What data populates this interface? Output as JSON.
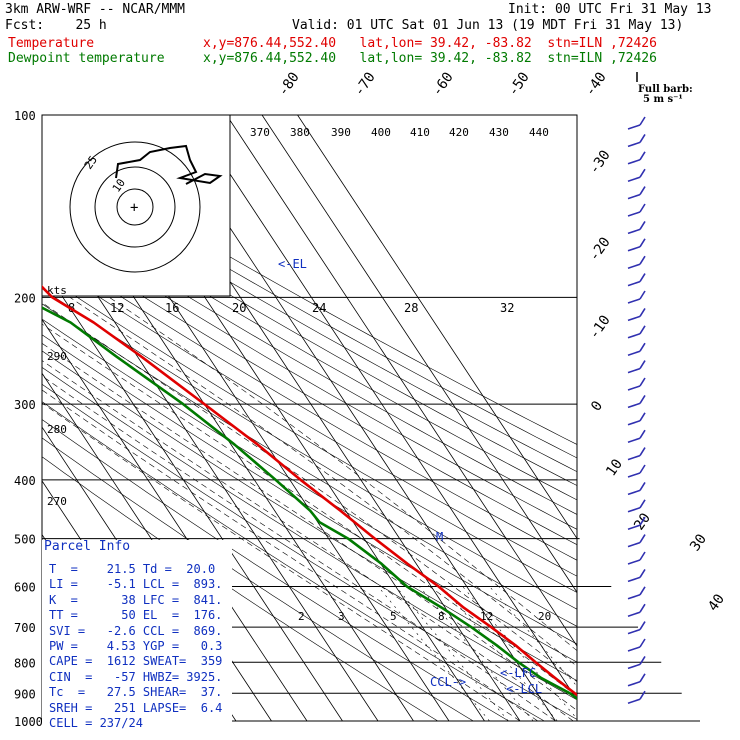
{
  "header": {
    "model": "3km ARW-WRF -- NCAR/MMM",
    "init": "Init: 00 UTC Fri 31 May 13",
    "fcst": "Fcst:    25 h",
    "valid": "Valid: 01 UTC Sat 01 Jun 13 (19 MDT Fri 31 May 13)",
    "temp_label": "Temperature",
    "temp_loc": "x,y=876.44,552.40   lat,lon= 39.42, -83.82  stn=ILN ,72426",
    "dew_label": "Dewpoint temperature",
    "dew_loc": "x,y=876.44,552.40   lat,lon= 39.42, -83.82  stn=ILN ,72426"
  },
  "wind_key": {
    "title": "Full barb:",
    "value": "5 m s⁻¹"
  },
  "parcel": {
    "title": "Parcel Info",
    "rows": [
      "T  =    21.5 Td =  20.0",
      "LI =    -5.1 LCL =  893.",
      "K  =      38 LFC =  841.",
      "TT =      50 EL  =  176.",
      "SVI =   -2.6 CCL =  869.",
      "PW =    4.53 YGP =   0.3",
      "CAPE =  1612 SWEAT=  359",
      "CIN  =   -57 HWBZ= 3925.",
      "Tc  =   27.5 SHEAR=  37.",
      "SREH =   251 LAPSE=  6.4",
      "CELL = 237/24"
    ]
  },
  "chart_data": {
    "type": "line",
    "diagram": "skew-T log-p",
    "pressure_ticks": [
      100,
      200,
      300,
      400,
      500,
      600,
      700,
      800,
      900,
      1000
    ],
    "pressure_range": [
      100,
      1000
    ],
    "temperature_tick_labels": [
      "-80",
      "-70",
      "-60",
      "-50",
      "-40",
      "-30",
      "-20",
      "-10",
      "0",
      "10",
      "20",
      "30",
      "40"
    ],
    "theta_labels_top": [
      "370",
      "380",
      "390",
      "400",
      "410",
      "420",
      "430",
      "440"
    ],
    "theta_labels_left": [
      "290",
      "280",
      "270"
    ],
    "mixing_ratio_labels": [
      "2",
      "3",
      "5",
      "8",
      "12",
      "20"
    ],
    "hodograph_speed_labels": [
      "8",
      "12",
      "16",
      "20",
      "24",
      "28",
      "32"
    ],
    "hodograph_units": "kts",
    "hodograph_ring_labels": [
      "25",
      "10"
    ],
    "annotations": [
      "<-EL",
      "<-LFC",
      "<-LCL",
      "CCL->",
      "M"
    ],
    "series": [
      {
        "name": "Temperature",
        "color": "#e00000",
        "points": [
          [
            975,
            24.5
          ],
          [
            960,
            25.3
          ],
          [
            930,
            22.5
          ],
          [
            900,
            20.6
          ],
          [
            850,
            17.9
          ],
          [
            800,
            15.3
          ],
          [
            750,
            12.8
          ],
          [
            700,
            9.3
          ],
          [
            650,
            5.2
          ],
          [
            600,
            2.1
          ],
          [
            550,
            -2.5
          ],
          [
            500,
            -7.0
          ],
          [
            450,
            -11.5
          ],
          [
            400,
            -17.0
          ],
          [
            350,
            -22.5
          ],
          [
            300,
            -30.0
          ],
          [
            250,
            -39.0
          ],
          [
            220,
            -46.0
          ],
          [
            200,
            -53.0
          ],
          [
            180,
            -55.5
          ],
          [
            150,
            -54.0
          ],
          [
            140,
            -55.0
          ],
          [
            120,
            -58.0
          ],
          [
            110,
            -59.5
          ],
          [
            100,
            -60.5
          ]
        ]
      },
      {
        "name": "Dewpoint temperature",
        "color": "#007a00",
        "points": [
          [
            975,
            20.0
          ],
          [
            960,
            19.5
          ],
          [
            940,
            21.5
          ],
          [
            900,
            19.2
          ],
          [
            850,
            14.0
          ],
          [
            800,
            10.5
          ],
          [
            750,
            7.5
          ],
          [
            700,
            3.7
          ],
          [
            650,
            -1.0
          ],
          [
            600,
            -6.8
          ],
          [
            550,
            -9.8
          ],
          [
            500,
            -14.5
          ],
          [
            470,
            -19.5
          ],
          [
            450,
            -20.0
          ],
          [
            400,
            -24.0
          ],
          [
            350,
            -29.0
          ],
          [
            300,
            -36.0
          ],
          [
            250,
            -46.0
          ],
          [
            220,
            -52.5
          ],
          [
            200,
            -61.5
          ],
          [
            180,
            -70.0
          ],
          [
            150,
            -72.5
          ],
          [
            130,
            -76.5
          ],
          [
            110,
            -78.5
          ],
          [
            100,
            -80.0
          ]
        ]
      }
    ]
  }
}
